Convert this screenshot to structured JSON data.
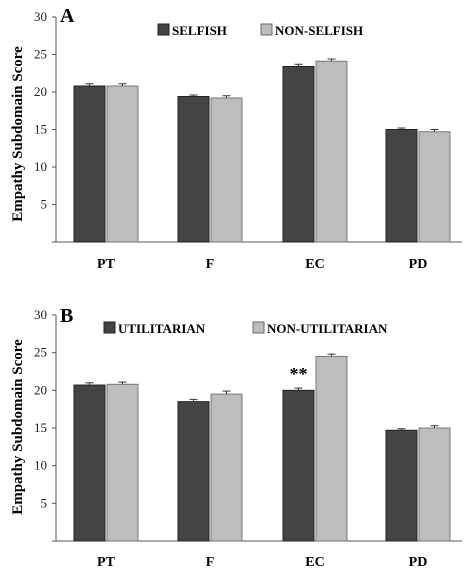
{
  "chart_data": [
    {
      "type": "bar",
      "panel": "A",
      "title": "",
      "xlabel": "",
      "ylabel": "Empathy Subdomain Score",
      "ylim": [
        0,
        30
      ],
      "yticks": [
        "",
        "5",
        "10",
        "15",
        "20",
        "25",
        "30"
      ],
      "categories": [
        "PT",
        "F",
        "EC",
        "PD"
      ],
      "series": [
        {
          "name": "SELFISH",
          "color": "#444444",
          "values": [
            20.8,
            19.4,
            23.4,
            15.0
          ],
          "errors": [
            0.3,
            0.2,
            0.3,
            0.2
          ]
        },
        {
          "name": "NON-SELFISH",
          "color": "#bdbdbd",
          "values": [
            20.8,
            19.2,
            24.1,
            14.7
          ],
          "errors": [
            0.3,
            0.3,
            0.3,
            0.3
          ]
        }
      ],
      "legend_position": "top-center",
      "grid": false,
      "annotations": []
    },
    {
      "type": "bar",
      "panel": "B",
      "title": "",
      "xlabel": "",
      "ylabel": "Empathy Subdomain Score",
      "ylim": [
        0,
        30
      ],
      "yticks": [
        "",
        "5",
        "10",
        "15",
        "20",
        "25",
        "30"
      ],
      "categories": [
        "PT",
        "F",
        "EC",
        "PD"
      ],
      "series": [
        {
          "name": "UTILITARIAN",
          "color": "#444444",
          "values": [
            20.7,
            18.5,
            20.0,
            14.7
          ],
          "errors": [
            0.3,
            0.3,
            0.3,
            0.2
          ]
        },
        {
          "name": "NON-UTILITARIAN",
          "color": "#bdbdbd",
          "values": [
            20.8,
            19.5,
            24.5,
            15.0
          ],
          "errors": [
            0.3,
            0.4,
            0.3,
            0.3
          ]
        }
      ],
      "legend_position": "top-center",
      "grid": false,
      "annotations": [
        {
          "text": "**",
          "category": "EC"
        }
      ]
    }
  ]
}
